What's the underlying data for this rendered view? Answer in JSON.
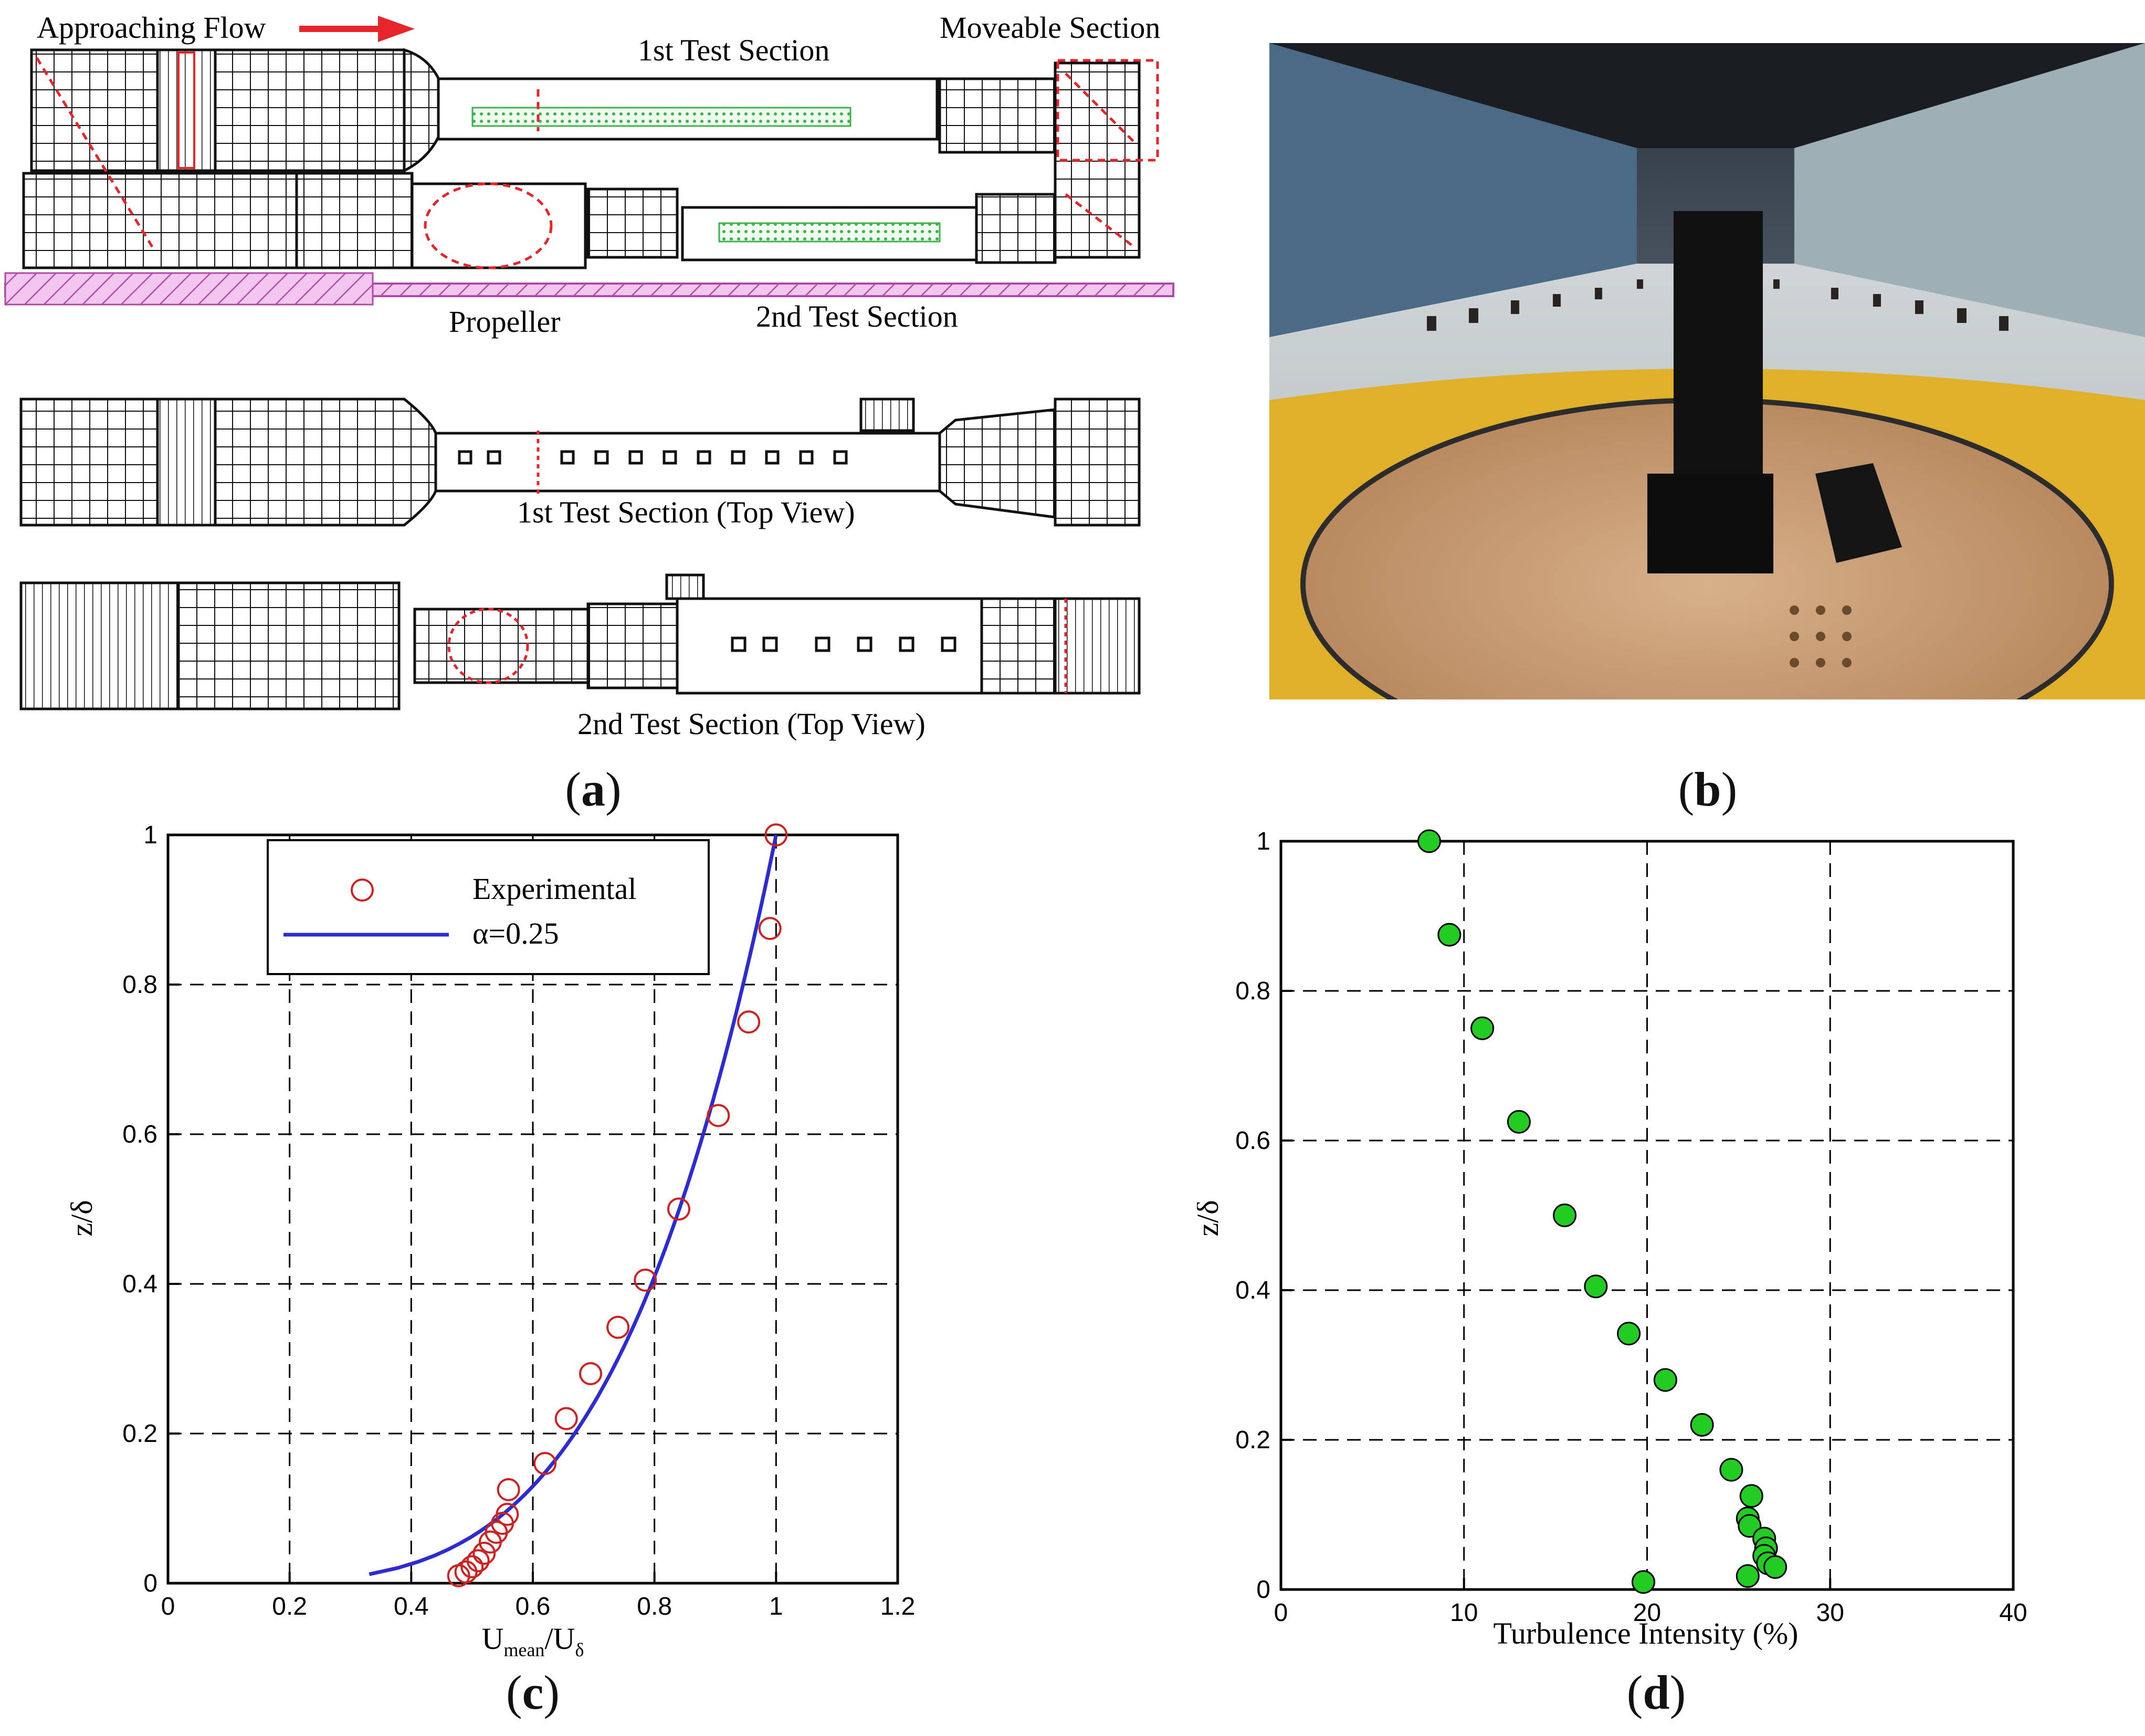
{
  "panel_a": {
    "label": "a",
    "approaching_flow": "Approaching Flow",
    "moveable_section": "Moveable Section",
    "first_test_section": "1st Test Section",
    "propeller": "Propeller",
    "second_test_section": "2nd Test Section",
    "first_top_view": "1st Test Section (Top View)",
    "second_top_view": "2nd Test Section (Top View)"
  },
  "panel_b": {
    "label": "b"
  },
  "panel_c": {
    "label": "c"
  },
  "panel_d": {
    "label": "d"
  },
  "chart_data": [
    {
      "id": "c",
      "type": "scatter",
      "title": "",
      "xlabel_main": "U",
      "xlabel_sub1": "mean",
      "xlabel_slash": "/U",
      "xlabel_sub2": "δ",
      "ylabel": "z/δ",
      "xlim": [
        0,
        1.2
      ],
      "ylim": [
        0,
        1
      ],
      "x_ticks": [
        "0",
        "0.2",
        "0.4",
        "0.6",
        "0.8",
        "1",
        "1.2"
      ],
      "y_ticks": [
        "0",
        "0.2",
        "0.4",
        "0.6",
        "0.8",
        "1"
      ],
      "grid": true,
      "legend_position": "top-left",
      "series": [
        {
          "name": "Experimental",
          "kind": "open-circle",
          "color": "#cc2222",
          "points": [
            [
              1.0,
              1.0
            ],
            [
              0.99,
              0.875
            ],
            [
              0.955,
              0.75
            ],
            [
              0.905,
              0.625
            ],
            [
              0.84,
              0.5
            ],
            [
              0.785,
              0.405
            ],
            [
              0.74,
              0.342
            ],
            [
              0.695,
              0.28
            ],
            [
              0.655,
              0.22
            ],
            [
              0.62,
              0.16
            ],
            [
              0.56,
              0.125
            ],
            [
              0.558,
              0.092
            ],
            [
              0.55,
              0.08
            ],
            [
              0.54,
              0.068
            ],
            [
              0.53,
              0.055
            ],
            [
              0.52,
              0.04
            ],
            [
              0.51,
              0.03
            ],
            [
              0.5,
              0.022
            ],
            [
              0.49,
              0.015
            ],
            [
              0.478,
              0.01
            ]
          ]
        },
        {
          "name": "α=0.25",
          "kind": "line",
          "color": "#2c2ccf",
          "alpha": 0.25,
          "z_range": [
            0.012,
            1
          ]
        }
      ]
    },
    {
      "id": "d",
      "type": "scatter",
      "title": "",
      "xlabel": "Turbulence Intensity (%)",
      "ylabel": "z/δ",
      "xlim": [
        0,
        40
      ],
      "ylim": [
        0,
        1
      ],
      "x_ticks": [
        "0",
        "10",
        "20",
        "30",
        "40"
      ],
      "y_ticks": [
        "0",
        "0.2",
        "0.4",
        "0.6",
        "0.8",
        "1"
      ],
      "grid": true,
      "series": [
        {
          "name": "Turbulence Intensity",
          "kind": "filled-circle",
          "color": "#22cc22",
          "points": [
            [
              8.1,
              1.0
            ],
            [
              9.2,
              0.875
            ],
            [
              11.0,
              0.75
            ],
            [
              13.0,
              0.625
            ],
            [
              15.5,
              0.5
            ],
            [
              17.2,
              0.405
            ],
            [
              19.0,
              0.342
            ],
            [
              21.0,
              0.28
            ],
            [
              23.0,
              0.22
            ],
            [
              24.6,
              0.16
            ],
            [
              25.7,
              0.125
            ],
            [
              25.5,
              0.095
            ],
            [
              25.6,
              0.085
            ],
            [
              26.4,
              0.068
            ],
            [
              26.5,
              0.055
            ],
            [
              26.4,
              0.045
            ],
            [
              26.6,
              0.035
            ],
            [
              27.0,
              0.03
            ],
            [
              19.8,
              0.01
            ],
            [
              25.5,
              0.018
            ]
          ]
        }
      ]
    }
  ]
}
